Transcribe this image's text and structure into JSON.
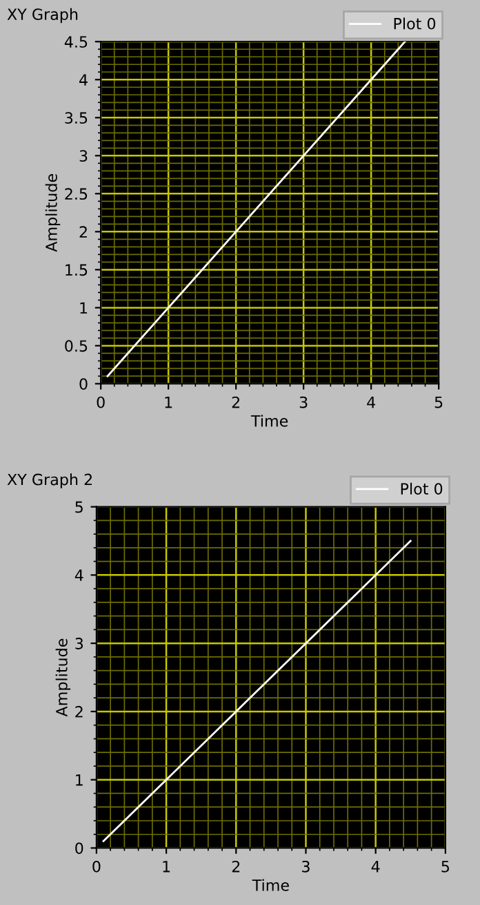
{
  "chart_data": [
    {
      "type": "line",
      "title": "XY Graph",
      "xlabel": "Time",
      "ylabel": "Amplitude",
      "x": [
        0.1,
        1,
        2,
        3,
        4,
        4.5
      ],
      "series": [
        {
          "name": "Plot 0",
          "color": "#ffffff",
          "values": [
            0.1,
            1,
            2,
            3,
            4,
            4.5
          ]
        }
      ],
      "xlim": [
        0,
        5
      ],
      "xticks": [
        0,
        {
          "value": 0.2,
          "label": null
        },
        {
          "value": 0.4,
          "label": null
        },
        {
          "value": 0.6,
          "label": null
        },
        {
          "value": 0.8,
          "label": null
        },
        1,
        {
          "value": 1.2,
          "label": null
        },
        {
          "value": 1.4,
          "label": null
        },
        {
          "value": 1.6,
          "label": null
        },
        {
          "value": 1.8,
          "label": null
        },
        2,
        {
          "value": 2.2,
          "label": null
        },
        {
          "value": 2.4,
          "label": null
        },
        {
          "value": 2.6,
          "label": null
        },
        {
          "value": 2.8,
          "label": null
        },
        3,
        {
          "value": 3.2,
          "label": null
        },
        {
          "value": 3.4,
          "label": null
        },
        {
          "value": 3.6,
          "label": null
        },
        {
          "value": 3.8,
          "label": null
        },
        4,
        {
          "value": 4.2,
          "label": null
        },
        {
          "value": 4.4,
          "label": null
        },
        {
          "value": 4.6,
          "label": null
        },
        {
          "value": 4.8,
          "label": null
        },
        5
      ],
      "ylim": [
        0,
        4.5
      ],
      "yticks": [
        0,
        {
          "value": 0.1,
          "label": null
        },
        {
          "value": 0.2,
          "label": null
        },
        {
          "value": 0.3,
          "label": null
        },
        {
          "value": 0.4,
          "label": null
        },
        0.5,
        {
          "value": 0.6,
          "label": null
        },
        {
          "value": 0.7,
          "label": null
        },
        {
          "value": 0.8,
          "label": null
        },
        {
          "value": 0.9,
          "label": null
        },
        1,
        {
          "value": 1.1,
          "label": null
        },
        {
          "value": 1.2,
          "label": null
        },
        {
          "value": 1.3,
          "label": null
        },
        {
          "value": 1.4,
          "label": null
        },
        1.5,
        {
          "value": 1.6,
          "label": null
        },
        {
          "value": 1.7,
          "label": null
        },
        {
          "value": 1.8,
          "label": null
        },
        {
          "value": 1.9,
          "label": null
        },
        2,
        {
          "value": 2.1,
          "label": null
        },
        {
          "value": 2.2,
          "label": null
        },
        {
          "value": 2.3,
          "label": null
        },
        {
          "value": 2.4,
          "label": null
        },
        2.5,
        {
          "value": 2.6,
          "label": null
        },
        {
          "value": 2.7,
          "label": null
        },
        {
          "value": 2.8,
          "label": null
        },
        {
          "value": 2.9,
          "label": null
        },
        3,
        {
          "value": 3.1,
          "label": null
        },
        {
          "value": 3.2,
          "label": null
        },
        {
          "value": 3.3,
          "label": null
        },
        {
          "value": 3.4,
          "label": null
        },
        3.5,
        {
          "value": 3.6,
          "label": null
        },
        {
          "value": 3.7,
          "label": null
        },
        {
          "value": 3.8,
          "label": null
        },
        {
          "value": 3.9,
          "label": null
        },
        4,
        {
          "value": 4.1,
          "label": null
        },
        {
          "value": 4.2,
          "label": null
        },
        {
          "value": 4.3,
          "label": null
        },
        {
          "value": 4.4,
          "label": null
        },
        4.5
      ],
      "grid": true,
      "legend": "top right"
    },
    {
      "type": "line",
      "title": "XY Graph 2",
      "xlabel": "Time",
      "ylabel": "Amplitude",
      "x": [
        0.1,
        1,
        2,
        3,
        4,
        4.5
      ],
      "series": [
        {
          "name": "Plot 0",
          "color": "#ffffff",
          "values": [
            0.1,
            1,
            2,
            3,
            4,
            4.5
          ]
        }
      ],
      "xlim": [
        0,
        5
      ],
      "xticks": [
        0,
        {
          "value": 0.2,
          "label": null
        },
        {
          "value": 0.4,
          "label": null
        },
        {
          "value": 0.6,
          "label": null
        },
        {
          "value": 0.8,
          "label": null
        },
        1,
        {
          "value": 1.2,
          "label": null
        },
        {
          "value": 1.4,
          "label": null
        },
        {
          "value": 1.6,
          "label": null
        },
        {
          "value": 1.8,
          "label": null
        },
        2,
        {
          "value": 2.2,
          "label": null
        },
        {
          "value": 2.4,
          "label": null
        },
        {
          "value": 2.6,
          "label": null
        },
        {
          "value": 2.8,
          "label": null
        },
        3,
        {
          "value": 3.2,
          "label": null
        },
        {
          "value": 3.4,
          "label": null
        },
        {
          "value": 3.6,
          "label": null
        },
        {
          "value": 3.8,
          "label": null
        },
        4,
        {
          "value": 4.2,
          "label": null
        },
        {
          "value": 4.4,
          "label": null
        },
        {
          "value": 4.6,
          "label": null
        },
        {
          "value": 4.8,
          "label": null
        },
        5
      ],
      "ylim": [
        0,
        5
      ],
      "yticks": [
        0,
        {
          "value": 0.2,
          "label": null
        },
        {
          "value": 0.4,
          "label": null
        },
        {
          "value": 0.6,
          "label": null
        },
        {
          "value": 0.8,
          "label": null
        },
        1,
        {
          "value": 1.2,
          "label": null
        },
        {
          "value": 1.4,
          "label": null
        },
        {
          "value": 1.6,
          "label": null
        },
        {
          "value": 1.8,
          "label": null
        },
        2,
        {
          "value": 2.2,
          "label": null
        },
        {
          "value": 2.4,
          "label": null
        },
        {
          "value": 2.6,
          "label": null
        },
        {
          "value": 2.8,
          "label": null
        },
        3,
        {
          "value": 3.2,
          "label": null
        },
        {
          "value": 3.4,
          "label": null
        },
        {
          "value": 3.6,
          "label": null
        },
        {
          "value": 3.8,
          "label": null
        },
        4,
        {
          "value": 4.2,
          "label": null
        },
        {
          "value": 4.4,
          "label": null
        },
        {
          "value": 4.6,
          "label": null
        },
        {
          "value": 4.8,
          "label": null
        },
        5
      ],
      "grid": true,
      "legend": "top right"
    }
  ]
}
